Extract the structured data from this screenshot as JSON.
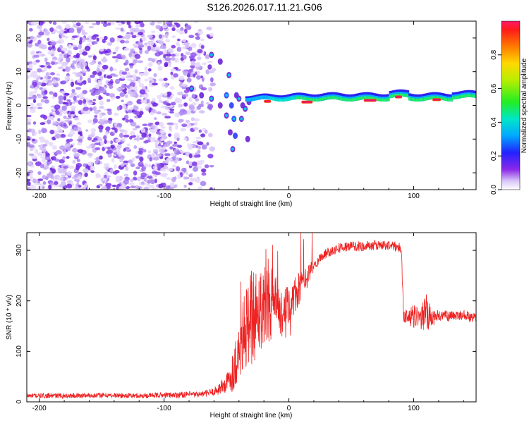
{
  "title": "S126.2026.017.11.21.G06",
  "chart_data": [
    {
      "type": "heatmap",
      "title": "S126.2026.017.11.21.G06",
      "xlabel": "Height of straight line (km)",
      "ylabel": "Frequency (Hz)",
      "xlim": [
        -210,
        150
      ],
      "ylim": [
        -25,
        25
      ],
      "xticks": [
        -200,
        -100,
        0,
        100
      ],
      "yticks": [
        -20,
        -10,
        0,
        10,
        20
      ],
      "colorbar": {
        "label": "Normalized spectral amplitude",
        "range": [
          0.0,
          1.0
        ],
        "ticks": [
          0.0,
          0.2,
          0.4,
          0.6,
          0.8
        ]
      },
      "features": {
        "noise_region_x": [
          -210,
          -60
        ],
        "split_tracks_x": [
          -75,
          -30
        ],
        "stable_tone_x": [
          -35,
          150
        ],
        "stable_tone_freq_hz": 1.5
      }
    },
    {
      "type": "line",
      "xlabel": "Height of straight line (km)",
      "ylabel": "SNR (10 * v/v)",
      "xlim": [
        -210,
        150
      ],
      "ylim": [
        0,
        335
      ],
      "xticks": [
        -200,
        -100,
        0,
        100
      ],
      "yticks": [
        0,
        100,
        200,
        300
      ],
      "series": [
        {
          "name": "SNR",
          "color": "#ee2222",
          "x": [
            -210,
            -180,
            -150,
            -120,
            -90,
            -70,
            -60,
            -50,
            -45,
            -40,
            -35,
            -30,
            -25,
            -20,
            -15,
            -10,
            -5,
            0,
            5,
            10,
            15,
            20,
            25,
            30,
            40,
            50,
            60,
            70,
            80,
            90,
            92,
            95,
            100,
            105,
            110,
            115,
            120,
            130,
            140,
            150
          ],
          "values": [
            12,
            12,
            13,
            12,
            14,
            15,
            20,
            35,
            60,
            100,
            140,
            170,
            180,
            195,
            200,
            185,
            175,
            190,
            210,
            230,
            250,
            270,
            285,
            295,
            305,
            308,
            308,
            310,
            310,
            305,
            170,
            170,
            168,
            165,
            175,
            165,
            170,
            170,
            172,
            165
          ],
          "noise": [
            5,
            5,
            5,
            5,
            6,
            6,
            8,
            20,
            40,
            60,
            80,
            100,
            90,
            80,
            80,
            60,
            50,
            40,
            40,
            30,
            20,
            12,
            10,
            10,
            10,
            10,
            10,
            10,
            10,
            10,
            12,
            15,
            25,
            20,
            40,
            15,
            12,
            10,
            10,
            10
          ]
        }
      ]
    }
  ]
}
